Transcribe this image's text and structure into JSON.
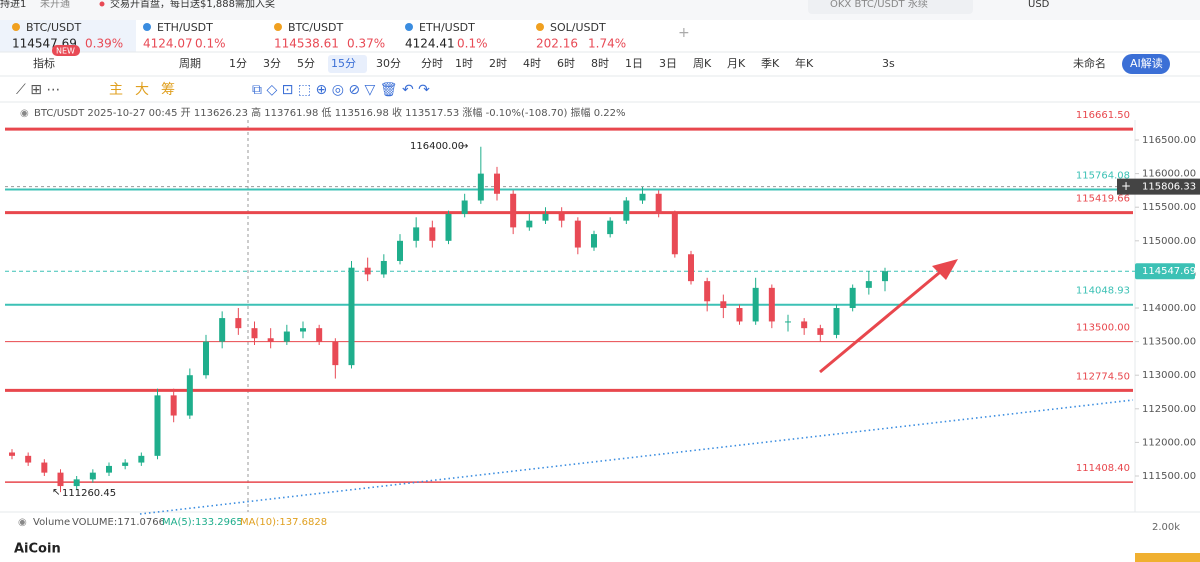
{
  "top_bar": {
    "left": "持进1",
    "status": "未开通",
    "notice": "交易开首盘，每日送$1,888需加入奖",
    "search": "OKX BTC/USDT 永续",
    "currency": "USD"
  },
  "tabs": [
    {
      "symbol": "BTC/USDT",
      "price": "114547.69",
      "change": "0.39%",
      "badge": "NEW"
    },
    {
      "symbol": "ETH/USDT",
      "price": "4124.07",
      "change": "0.1%"
    },
    {
      "symbol": "BTC/USDT",
      "price": "114538.61",
      "change": "0.37%"
    },
    {
      "symbol": "ETH/USDT",
      "price": "4124.41",
      "change": "0.1%"
    },
    {
      "symbol": "SOL/USDT",
      "price": "202.16",
      "change": "1.74%"
    }
  ],
  "toolbar": {
    "indicator": "指标",
    "period": "周期",
    "intervals": [
      "1分",
      "3分",
      "5分",
      "15分",
      "30分",
      "分时",
      "1时",
      "2时",
      "4时",
      "6时",
      "8时",
      "1日",
      "3日",
      "周K",
      "月K",
      "季K",
      "年K"
    ],
    "active_interval": "15分",
    "refresh": "3s",
    "layout": "未命名",
    "ai": "AI解读",
    "tools": [
      "主",
      "大",
      "筹"
    ]
  },
  "chart_data": {
    "type": "candlestick",
    "info": "BTC/USDT  2025-10-27 00:45  开 113626.23 高 113761.98 低 113516.98 收 113517.53  涨幅 -0.10%(-108.70)  振幅 0.22%",
    "ylim": [
      110994,
      116798
    ],
    "yticks": [
      {
        "value": 116500,
        "label": "116500.00"
      },
      {
        "value": 116000,
        "label": "116000.00"
      },
      {
        "value": 115500,
        "label": "115500.00"
      },
      {
        "value": 115000,
        "label": "115000.00"
      },
      {
        "value": 114500,
        "label": "114500.00"
      },
      {
        "value": 114000,
        "label": "114000.00"
      },
      {
        "value": 113500,
        "label": "113500.00"
      },
      {
        "value": 113000,
        "label": "113000.00"
      },
      {
        "value": 112500,
        "label": "112500.00"
      },
      {
        "value": 112000,
        "label": "112000.00"
      },
      {
        "value": 111500,
        "label": "111500.00"
      }
    ],
    "up_color": "#1fae8c",
    "down_color": "#e84a55",
    "levels": [
      {
        "price": {
          "value": 116661.5,
          "label": "116661.50"
        },
        "color": "#e8474d",
        "width": 3
      },
      {
        "price": 115764.08,
        "color": "#3cc1b5",
        "width": 2
      },
      {
        "price": 115419.66,
        "color": "#e8474d",
        "width": 3
      },
      {
        "price": 114048.93,
        "color": "#3cc1b5",
        "width": 2
      },
      {
        "price": {
          "value": 113500,
          "label": "113500.00"
        },
        "color": "#e8474d",
        "width": 1
      },
      {
        "price": {
          "value": 112774.5,
          "label": "112774.50"
        },
        "color": "#e8474d",
        "width": 3
      },
      {
        "price": {
          "value": 111408.4,
          "label": "111408.40"
        },
        "color": "#e8474d",
        "width": 1.5
      }
    ],
    "current_price": 114547.69,
    "crosshair_price": 115806.33,
    "annotations": [
      {
        "text": "116400.00"
      },
      {
        "text": "111260.45"
      }
    ],
    "candles": [
      [
        111850,
        111900,
        111750,
        111800
      ],
      [
        111800,
        111850,
        111650,
        111700
      ],
      [
        111700,
        111750,
        111500,
        111550
      ],
      [
        111550,
        111600,
        111260.45,
        111350
      ],
      [
        111350,
        111500,
        111300,
        111450
      ],
      [
        111450,
        111600,
        111400,
        111550
      ],
      [
        111550,
        111700,
        111500,
        111650
      ],
      [
        111650,
        111750,
        111600,
        111700
      ],
      [
        111700,
        111850,
        111650,
        111800
      ],
      [
        111800,
        112800,
        111750,
        112700
      ],
      [
        112700,
        112800,
        112300,
        112400
      ],
      [
        112400,
        113100,
        112350,
        113000
      ],
      [
        113000,
        113600,
        112950,
        113500
      ],
      [
        113500,
        113950,
        113400,
        113850
      ],
      [
        113850,
        114000,
        113600,
        113700
      ],
      [
        113700,
        113800,
        113450,
        113550
      ],
      [
        113550,
        113700,
        113400,
        113500
      ],
      [
        113500,
        113750,
        113450,
        113650
      ],
      [
        113650,
        113800,
        113550,
        113700
      ],
      [
        113700,
        113750,
        113450,
        113500
      ],
      [
        113500,
        113550,
        112950,
        113150
      ],
      [
        113150,
        114700,
        113100,
        114600
      ],
      [
        114600,
        114750,
        114400,
        114500
      ],
      [
        114500,
        114800,
        114450,
        114700
      ],
      [
        114700,
        115100,
        114650,
        115000
      ],
      [
        115000,
        115350,
        114900,
        115200
      ],
      [
        115200,
        115300,
        114900,
        115000
      ],
      [
        115000,
        115450,
        114950,
        115400
      ],
      [
        115400,
        115700,
        115350,
        115600
      ],
      [
        115600,
        116400,
        115550,
        116000
      ],
      [
        116000,
        116100,
        115600,
        115700
      ],
      [
        115700,
        115750,
        115100,
        115200
      ],
      [
        115200,
        115400,
        115150,
        115300
      ],
      [
        115300,
        115500,
        115250,
        115400
      ],
      [
        115400,
        115500,
        115200,
        115300
      ],
      [
        115300,
        115350,
        114800,
        114900
      ],
      [
        114900,
        115150,
        114850,
        115100
      ],
      [
        115100,
        115350,
        115050,
        115300
      ],
      [
        115300,
        115650,
        115250,
        115600
      ],
      [
        115600,
        115800,
        115550,
        115700
      ],
      [
        115700,
        115750,
        115350,
        115400
      ],
      [
        115400,
        115450,
        114750,
        114800
      ],
      [
        114800,
        114850,
        114350,
        114400
      ],
      [
        114400,
        114450,
        113950,
        114100
      ],
      [
        114100,
        114200,
        113850,
        114000
      ],
      [
        114000,
        114050,
        113750,
        113800
      ],
      [
        113800,
        114450,
        113750,
        114300
      ],
      [
        114300,
        114350,
        113700,
        113800
      ],
      [
        113800,
        113900,
        113650,
        113800
      ],
      [
        113800,
        113850,
        113600,
        113700
      ],
      [
        113700,
        113750,
        113500,
        113600
      ],
      [
        113600,
        114050,
        113550,
        114000
      ],
      [
        114000,
        114350,
        113950,
        114300
      ],
      [
        114300,
        114550,
        114200,
        114400
      ],
      [
        114400,
        114600,
        114250,
        114547.69
      ]
    ],
    "volume": {
      "label": "Volume",
      "value": "VOLUME:171.0766",
      "ma5": "MA(5):133.2965",
      "ma10": "MA(10):137.6828",
      "axis": "2.00k"
    },
    "logo": "AiCoin"
  }
}
